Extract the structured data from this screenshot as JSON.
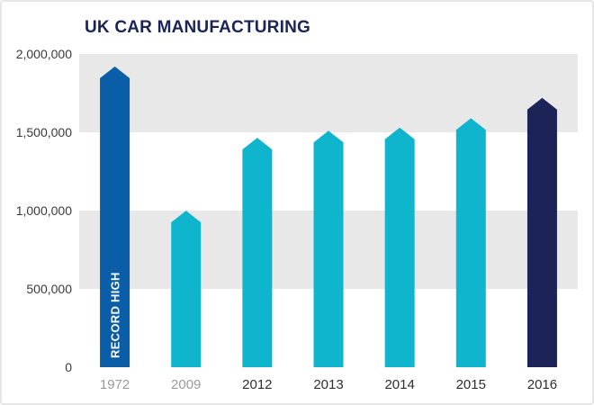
{
  "chart_data": {
    "type": "bar",
    "title": "UK CAR MANUFACTURING",
    "categories": [
      "1972",
      "2009",
      "2012",
      "2013",
      "2014",
      "2015",
      "2016"
    ],
    "values": [
      1920000,
      999000,
      1465000,
      1510000,
      1530000,
      1590000,
      1720000
    ],
    "ylim": [
      0,
      2000000
    ],
    "yticks": [
      "2,000,000",
      "1,500,000",
      "1,000,000",
      "500,000",
      "0"
    ],
    "annotation": "RECORD HIGH",
    "colors": {
      "record": "#0a5ea8",
      "history": "#0fb5cc",
      "latest": "#1c2457",
      "band": "#e9e8e9"
    }
  }
}
